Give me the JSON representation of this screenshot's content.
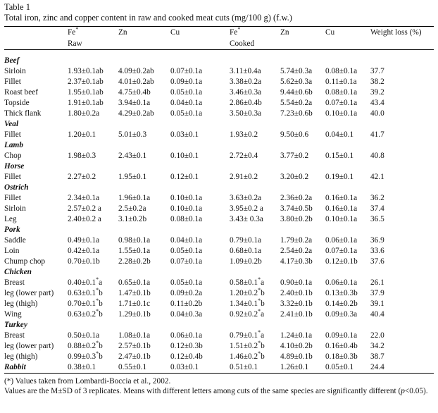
{
  "caption": {
    "label": "Table 1",
    "title": "Total iron, zinc and copper content in raw and cooked meat cuts (mg/100 g) (f.w.)"
  },
  "header": {
    "fe": "Fe",
    "fe_mark": "*",
    "zn": "Zn",
    "cu": "Cu",
    "weight_loss": "Weight loss (%)",
    "raw": "Raw",
    "cooked": "Cooked"
  },
  "rows": [
    {
      "species": "Beef"
    },
    {
      "cut": "Sirloin",
      "fe": "1.93±0.1ab",
      "zn": "4.09±0.2ab",
      "cu": "0.07±0.1a",
      "cfe": "3.11±0.4a",
      "czn": "5.74±0.3a",
      "ccu": "0.08±0.1a",
      "wl": "37.7"
    },
    {
      "cut": "Fillet",
      "fe": "2.37±0.1ab",
      "zn": "4.01±0.2ab",
      "cu": "0.09±0.1a",
      "cfe": "3.38±0.2a",
      "czn": "5.62±0.3a",
      "ccu": "0.11±0.1a",
      "wl": "38.2"
    },
    {
      "cut": "Roast beef",
      "fe": "1.95±0.1ab",
      "zn": "4.75±0.4b",
      "cu": "0.05±0.1a",
      "cfe": "3.46±0.3a",
      "czn": "9.44±0.6b",
      "ccu": "0.08±0.1a",
      "wl": "39.2"
    },
    {
      "cut": "Topside",
      "fe": "1.91±0.1ab",
      "zn": "3.94±0.1a",
      "cu": "0.04±0.1a",
      "cfe": "2.86±0.4b",
      "czn": "5.54±0.2a",
      "ccu": "0.07±0.1a",
      "wl": "43.4"
    },
    {
      "cut": "Thick flank",
      "fe": "1.80±0.2a",
      "zn": "4.29±0.2ab",
      "cu": "0.05±0.1a",
      "cfe": "3.50±0.3a",
      "czn": "7.23±0.6b",
      "ccu": "0.10±0.1a",
      "wl": "40.0"
    },
    {
      "species": "Veal"
    },
    {
      "cut": "Fillet",
      "fe": "1.20±0.1",
      "zn": "5.01±0.3",
      "cu": "0.03±0.1",
      "cfe": "1.93±0.2",
      "czn": "9.50±0.6",
      "ccu": "0.04±0.1",
      "wl": "41.7"
    },
    {
      "species": "Lamb"
    },
    {
      "cut": "Chop",
      "fe": "1.98±0.3",
      "zn": "2.43±0.1",
      "cu": "0.10±0.1",
      "cfe": "2.72±0.4",
      "czn": "3.77±0.2",
      "ccu": "0.15±0.1",
      "wl": "40.8"
    },
    {
      "species": "Horse"
    },
    {
      "cut": "Fillet",
      "fe": "2.27±0.2",
      "zn": "1.95±0.1",
      "cu": "0.12±0.1",
      "cfe": "2.91±0.2",
      "czn": "3.20±0.2",
      "ccu": "0.19±0.1",
      "wl": "42.1"
    },
    {
      "species": "Ostrich"
    },
    {
      "cut": "Fillet",
      "fe": "2.34±0.1a",
      "zn": "1.96±0.1a",
      "cu": "0.10±0.1a",
      "cfe": "3.63±0.2a",
      "czn": "2.36±0.2a",
      "ccu": "0.16±0.1a",
      "wl": "36.2"
    },
    {
      "cut": "Sirloin",
      "fe": "2.57±0.2 a",
      "zn": "2.5±0.2a",
      "cu": "0.10±0.1a",
      "cfe": "3.95±0.2 a",
      "czn": "3.74±0.5b",
      "ccu": "0.16±0.1a",
      "wl": "37.4"
    },
    {
      "cut": "Leg",
      "fe": "2.40±0.2 a",
      "zn": "3.1±0.2b",
      "cu": "0.08±0.1a",
      "cfe": "3.43± 0.3a",
      "czn": "3.80±0.2b",
      "ccu": "0.10±0.1a",
      "wl": "36.5"
    },
    {
      "species": "Pork"
    },
    {
      "cut": "Saddle",
      "fe": "0.49±0.1a",
      "zn": "0.98±0.1a",
      "cu": "0.04±0.1a",
      "cfe": "0.79±0.1a",
      "czn": "1.79±0.2a",
      "ccu": "0.06±0.1a",
      "wl": "36.9"
    },
    {
      "cut": "Loin",
      "fe": "0.42±0.1a",
      "zn": "1.55±0.1a",
      "cu": "0.05±0.1a",
      "cfe": "0.68±0.1a",
      "czn": "2.54±0.2a",
      "ccu": "0.07±0.1a",
      "wl": "33.6"
    },
    {
      "cut": "Chump chop",
      "fe": "0.70±0.1b",
      "zn": "2.28±0.2b",
      "cu": "0.07±0.1a",
      "cfe": "1.09±0.2b",
      "czn": "4.17±0.3b",
      "ccu": "0.12±0.1b",
      "wl": "37.6"
    },
    {
      "species": "Chicken"
    },
    {
      "cut": "Breast",
      "fe": "0.40±0.1",
      "fe_sup": "*",
      "fe_letter": "a",
      "zn": "0.65±0.1a",
      "cu": "0.05±0.1a",
      "cfe": "0.58±0.1",
      "cfe_sup": "*",
      "cfe_letter": "a",
      "czn": "0.90±0.1a",
      "ccu": "0.06±0.1a",
      "wl": "26.1"
    },
    {
      "cut": "leg (lower part)",
      "fe": "0.63±0.1",
      "fe_sup": "*",
      "fe_letter": "b",
      "zn": "1.47±0.1b",
      "cu": "0.09±0.2a",
      "cfe": "1.20±0.2",
      "cfe_sup": "*",
      "cfe_letter": "b",
      "czn": "2.40±0.1b",
      "ccu": "0.13±0.3b",
      "wl": "37.9"
    },
    {
      "cut": "leg (thigh)",
      "fe": "0.70±0.1",
      "fe_sup": "*",
      "fe_letter": "b",
      "zn": "1.71±0.1c",
      "cu": "0.11±0.2b",
      "cfe": "1.34±0.1",
      "cfe_sup": "*",
      "cfe_letter": "b",
      "czn": "3.32±0.1b",
      "ccu": "0.14±0.2b",
      "wl": "39.1"
    },
    {
      "cut": "Wing",
      "fe": "0.63±0.2",
      "fe_sup": "*",
      "fe_letter": "b",
      "zn": "1.29±0.1b",
      "cu": "0.04±0.3a",
      "cfe": "0.92±0.2",
      "cfe_sup": "*",
      "cfe_letter": "a",
      "czn": "2.41±0.1b",
      "ccu": "0.09±0.3a",
      "wl": "40.4"
    },
    {
      "species": "Turkey"
    },
    {
      "cut": "Breast",
      "fe": "0.50±0.1a",
      "zn": "1.08±0.1a",
      "cu": "0.06±0.1a",
      "cfe": "0.79±0.1",
      "cfe_sup": "*",
      "cfe_letter": "a",
      "czn": "1.24±0.1a",
      "ccu": "0.09±0.1a",
      "wl": "22.0"
    },
    {
      "cut": "leg (lower part)",
      "fe": "0.88±0.2",
      "fe_sup": "*",
      "fe_letter": "b",
      "zn": "2.57±0.1b",
      "cu": "0.12±0.3b",
      "cfe": "1.51±0.2",
      "cfe_sup": "*",
      "cfe_letter": "b",
      "czn": "4.10±0.2b",
      "ccu": "0.16±0.4b",
      "wl": "34.2"
    },
    {
      "cut": "leg (thigh)",
      "fe": "0.99±0.3",
      "fe_sup": "*",
      "fe_letter": "b",
      "zn": "2.47±0.1b",
      "cu": "0.12±0.4b",
      "cfe": "1.46±0.2",
      "cfe_sup": "*",
      "cfe_letter": "b",
      "czn": "4.89±0.1b",
      "ccu": "0.18±0.3b",
      "wl": "38.7"
    },
    {
      "species": "Rabbit",
      "fe": "0.38±0.1",
      "zn": "0.55±0.1",
      "cu": "0.03±0.1",
      "cfe": "0.51±0.1",
      "czn": "1.26±0.1",
      "ccu": "0.05±0.1",
      "wl": "24.4"
    }
  ],
  "notes": {
    "n1": "(*) Values taken from Lombardi-Boccia et al., 2002.",
    "n2": "Values are the M±SD of 3 replicates. Means with different letters among cuts of the same species are significantly different (",
    "n2_p": "p",
    "n2_end": "<0.05)."
  }
}
